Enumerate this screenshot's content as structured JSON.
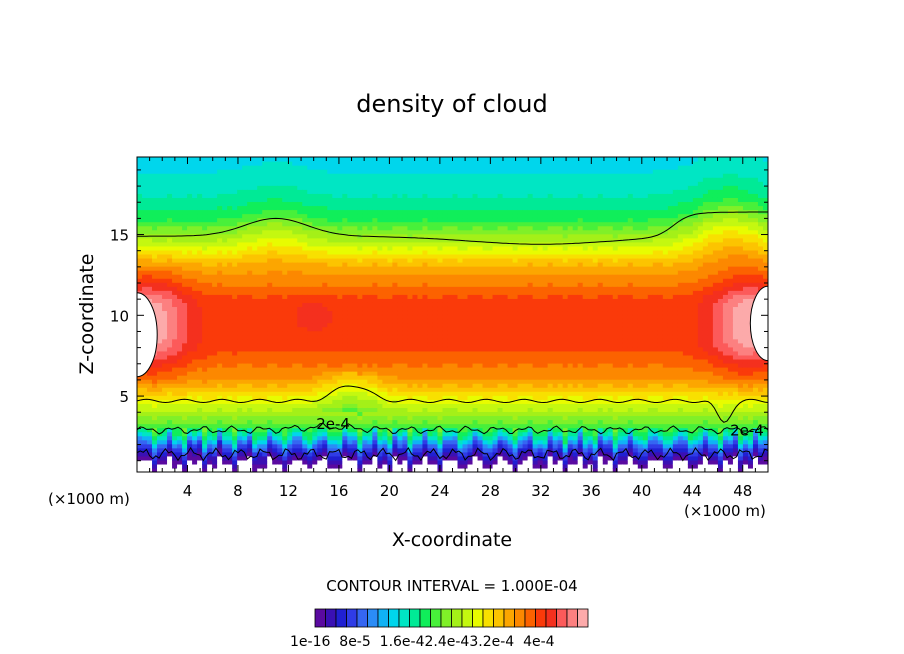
{
  "chart_data": {
    "type": "heatmap",
    "title": "density of cloud",
    "xlabel": "X-coordinate",
    "ylabel": "Z-coordinate",
    "x_unit": "(×1000 m)",
    "x_unit_right": "(×1000 m)",
    "xlim": [
      0,
      50
    ],
    "ylim": [
      0.3,
      19.8
    ],
    "x_ticks": [
      4,
      8,
      12,
      16,
      20,
      24,
      28,
      32,
      36,
      40,
      44,
      48
    ],
    "y_ticks": [
      5,
      10,
      15
    ],
    "contour_interval_text": "CONTOUR INTERVAL = 1.000E-04",
    "contour_level": "2e-4",
    "contour_labels": [
      "2e-4",
      "2e-4"
    ],
    "colorbar": {
      "min": 1e-16,
      "max": 0.00044,
      "levels": 26,
      "tick_labels": [
        "1e-16",
        "8e-5",
        "1.6e-4",
        "2.4e-4",
        "3.2e-4",
        "4e-4"
      ],
      "label_text": "1e-16  8e-5  1.6e-42.4e-43.2e-4  4e-4"
    },
    "field_profile_center": [
      {
        "z": 0.8,
        "value": 0.0
      },
      {
        "z": 1.3,
        "value": 3e-05
      },
      {
        "z": 2.0,
        "value": 8e-05
      },
      {
        "z": 2.6,
        "value": 0.00016
      },
      {
        "z": 3.5,
        "value": 0.00021
      },
      {
        "z": 4.7,
        "value": 0.00026
      },
      {
        "z": 6.0,
        "value": 0.00032
      },
      {
        "z": 8.0,
        "value": 0.00036
      },
      {
        "z": 11.0,
        "value": 0.00036
      },
      {
        "z": 13.0,
        "value": 0.00031
      },
      {
        "z": 14.5,
        "value": 0.00024
      },
      {
        "z": 16.0,
        "value": 0.00018
      },
      {
        "z": 18.0,
        "value": 0.00014
      },
      {
        "z": 19.8,
        "value": 0.00013
      }
    ],
    "grid": false
  },
  "colors": {
    "palette": [
      "#5a0aa0",
      "#3a10b4",
      "#2020d2",
      "#2f3ce6",
      "#3566f2",
      "#2b8cf6",
      "#10b2f5",
      "#00d6ec",
      "#00e6c4",
      "#00ea96",
      "#10ee5a",
      "#48f03a",
      "#80f028",
      "#a4f018",
      "#c4f810",
      "#e8fc00",
      "#f8e000",
      "#fcc400",
      "#fca600",
      "#fc8800",
      "#fc6200",
      "#fa3a0a",
      "#f4301e",
      "#fc5a5a",
      "#fc8080",
      "#fcaaaa"
    ]
  }
}
